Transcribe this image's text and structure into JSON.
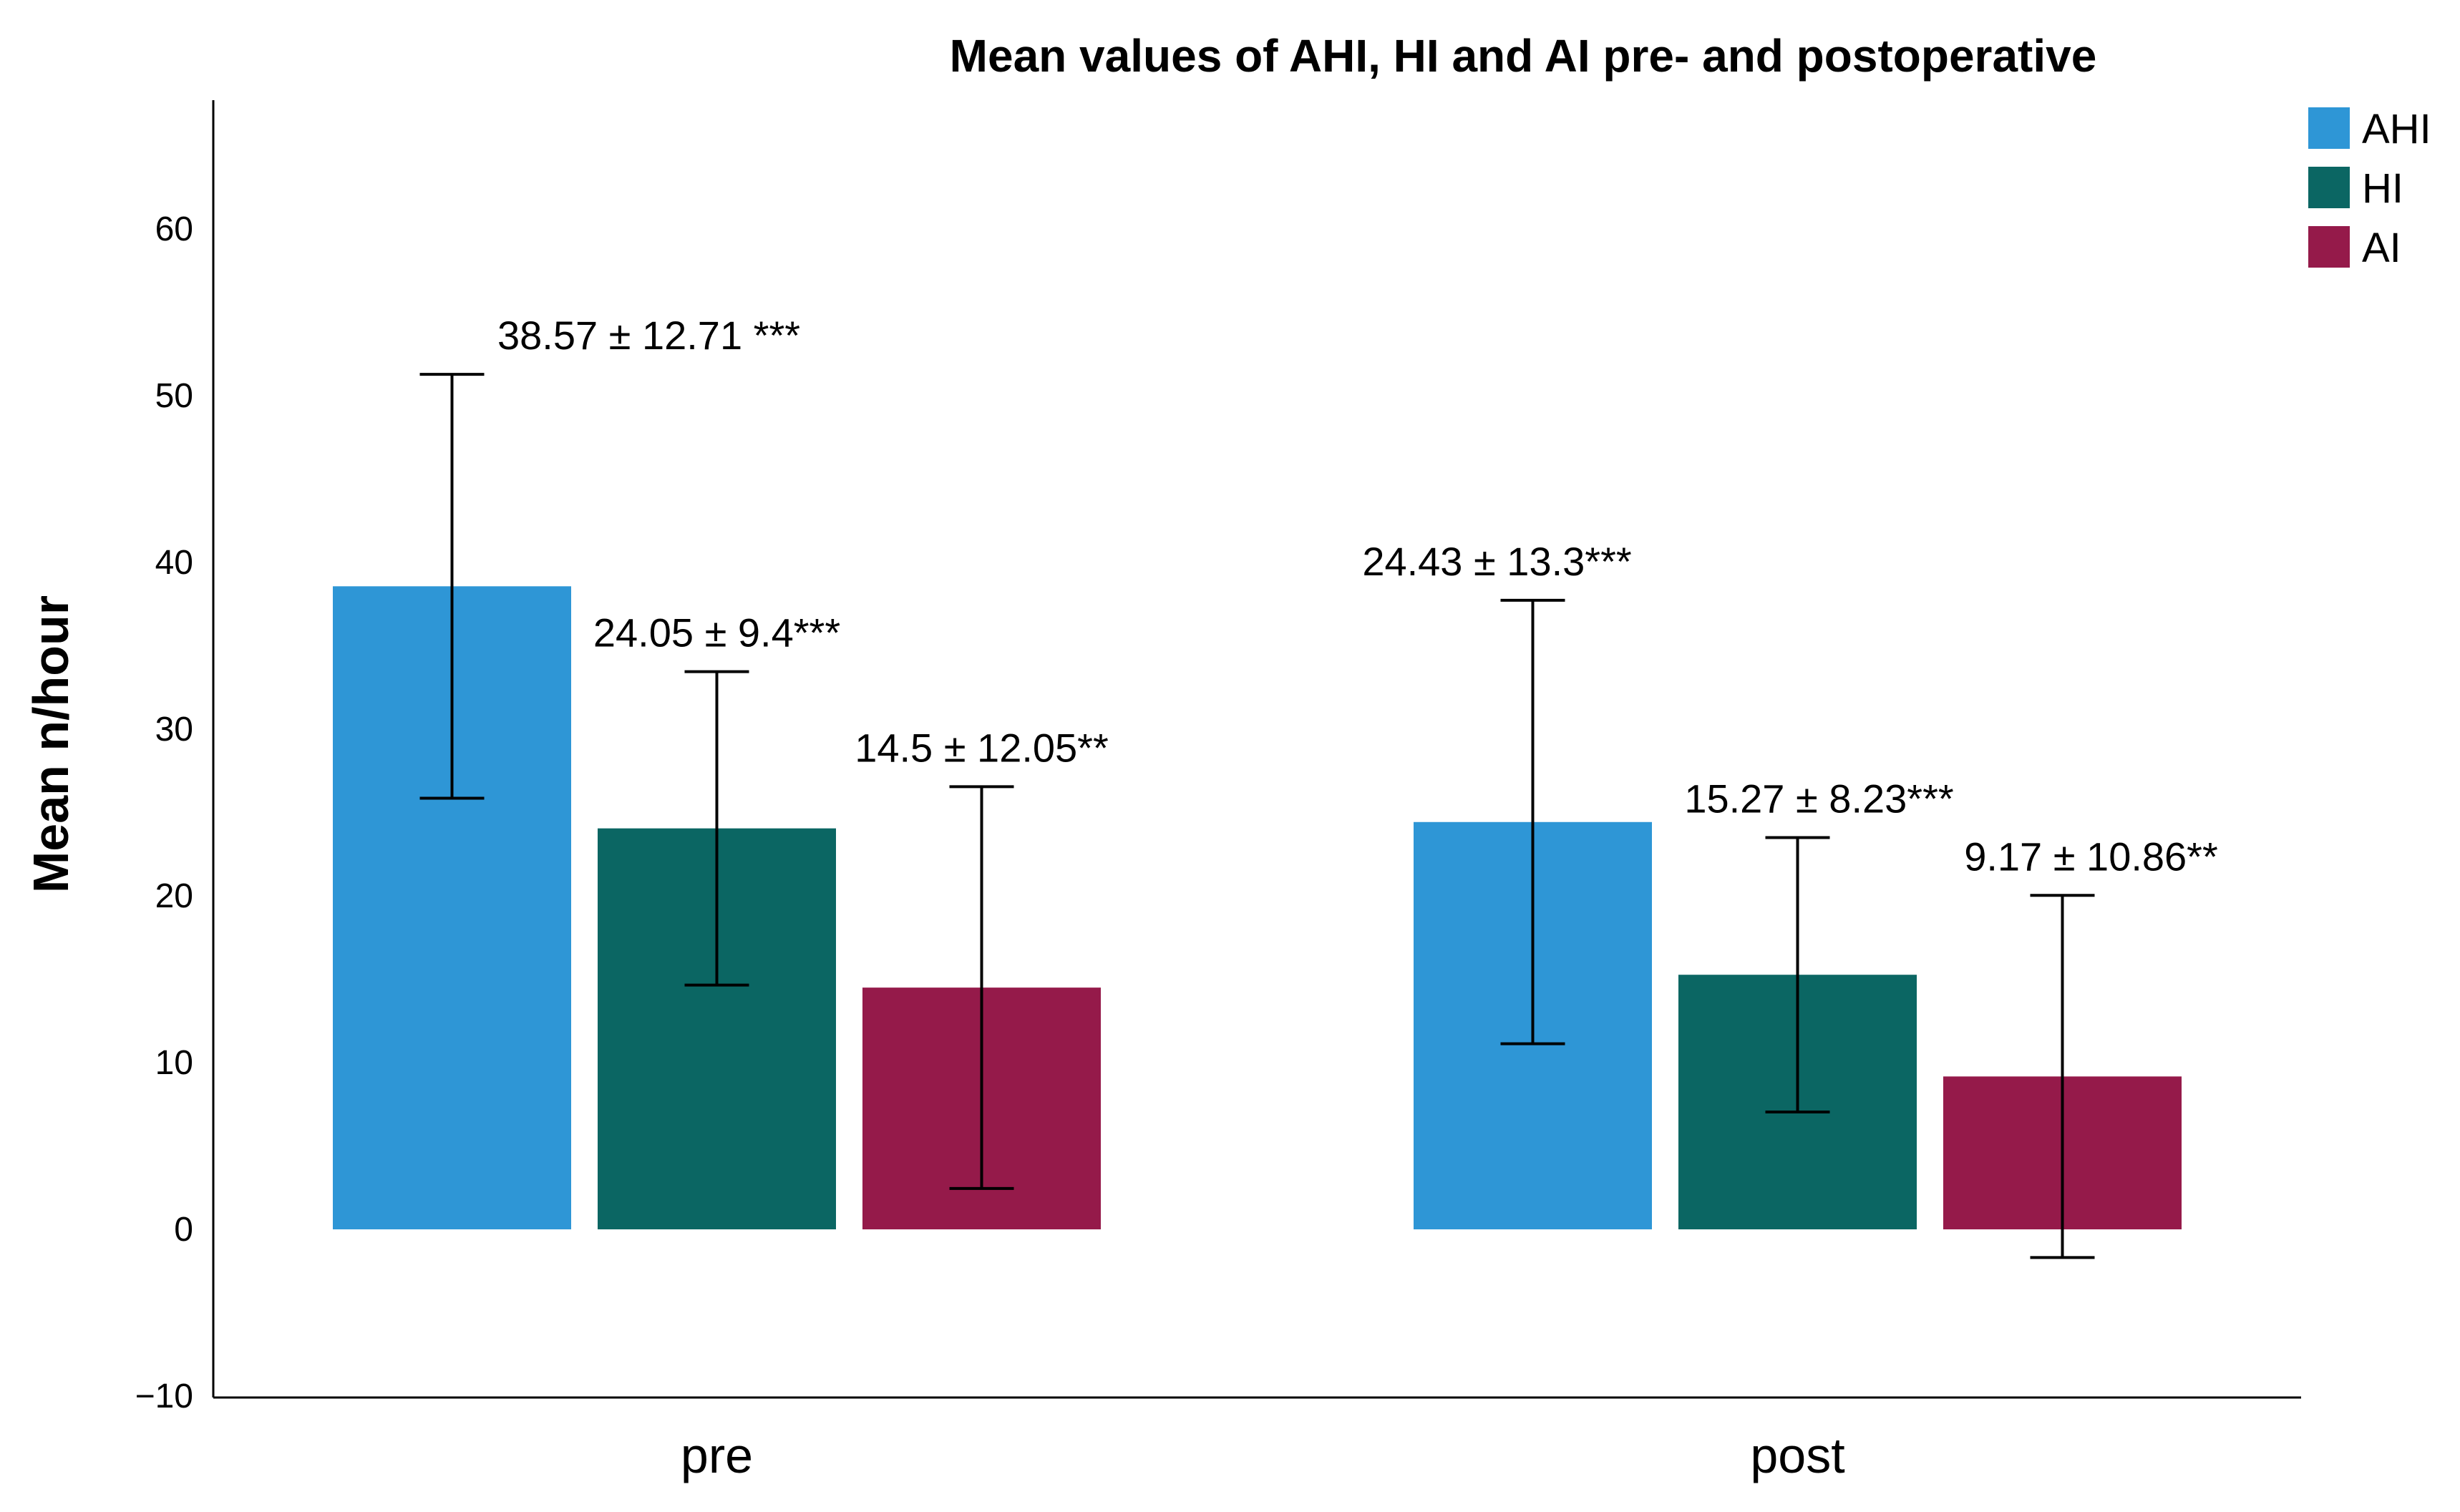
{
  "chart_data": {
    "type": "bar",
    "title": "Mean values of AHI, HI and AI pre- and postoperative",
    "xlabel": "",
    "ylabel": "Mean n/hour",
    "ylim": [
      -10,
      68
    ],
    "yticks": [
      -10,
      0,
      10,
      20,
      30,
      40,
      50,
      60
    ],
    "ytick_labels": [
      "−10",
      "0",
      "10",
      "20",
      "30",
      "40",
      "50",
      "60"
    ],
    "categories": [
      "pre",
      "post"
    ],
    "legend_position": "top-right",
    "series": [
      {
        "name": "AHI",
        "color": "#2E96D6",
        "values": [
          38.57,
          24.43
        ],
        "errors": [
          12.71,
          13.3
        ],
        "labels": [
          "38.57 ± 12.71 ***",
          "24.43 ± 13.3***"
        ]
      },
      {
        "name": "HI",
        "color": "#0B6663",
        "values": [
          24.05,
          15.27
        ],
        "errors": [
          9.4,
          8.23
        ],
        "labels": [
          "24.05 ± 9.4***",
          "15.27 ± 8.23***"
        ]
      },
      {
        "name": "AI",
        "color": "#951A4A",
        "values": [
          14.5,
          9.17
        ],
        "errors": [
          12.05,
          10.86
        ],
        "labels": [
          "14.5 ± 12.05**",
          "9.17 ± 10.86**"
        ]
      }
    ]
  }
}
